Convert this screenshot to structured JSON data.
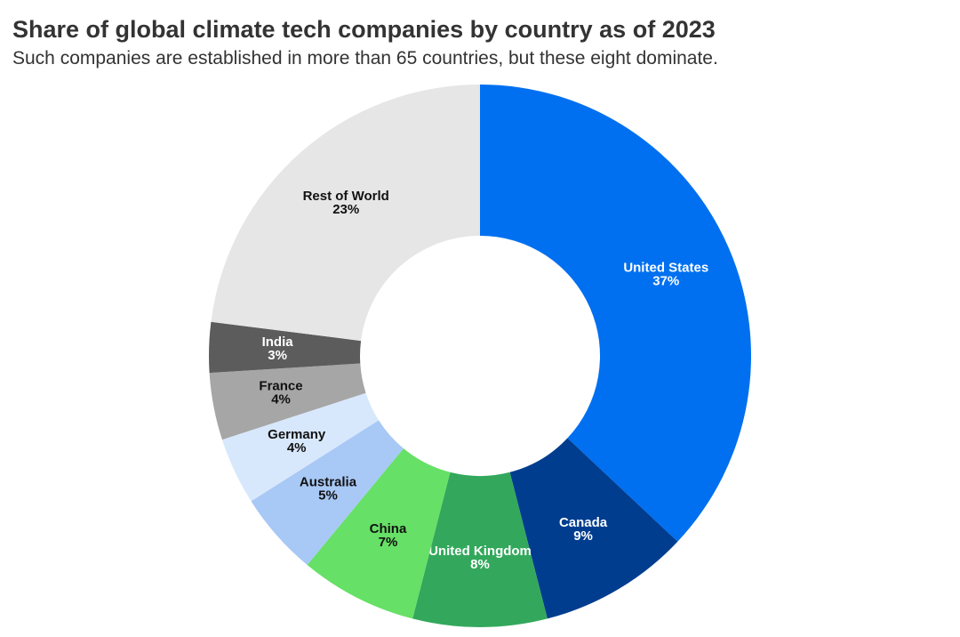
{
  "chart_data": {
    "type": "donut",
    "title": "Share of global climate tech companies by country as of 2023",
    "subtitle": "Such companies are established in more than 65 countries, but these eight dominate.",
    "categories": [
      "United States",
      "Canada",
      "United Kingdom",
      "China",
      "Australia",
      "Germany",
      "France",
      "India",
      "Rest of World"
    ],
    "values": [
      37,
      9,
      8,
      7,
      5,
      4,
      4,
      3,
      23
    ],
    "value_labels": [
      "37%",
      "9%",
      "8%",
      "7%",
      "5%",
      "4%",
      "4%",
      "3%",
      "23%"
    ],
    "colors": [
      "#0070f0",
      "#003d8f",
      "#33a85c",
      "#66e066",
      "#a8c8f5",
      "#d8e8fc",
      "#a6a6a6",
      "#5c5c5c",
      "#e6e6e6"
    ]
  }
}
